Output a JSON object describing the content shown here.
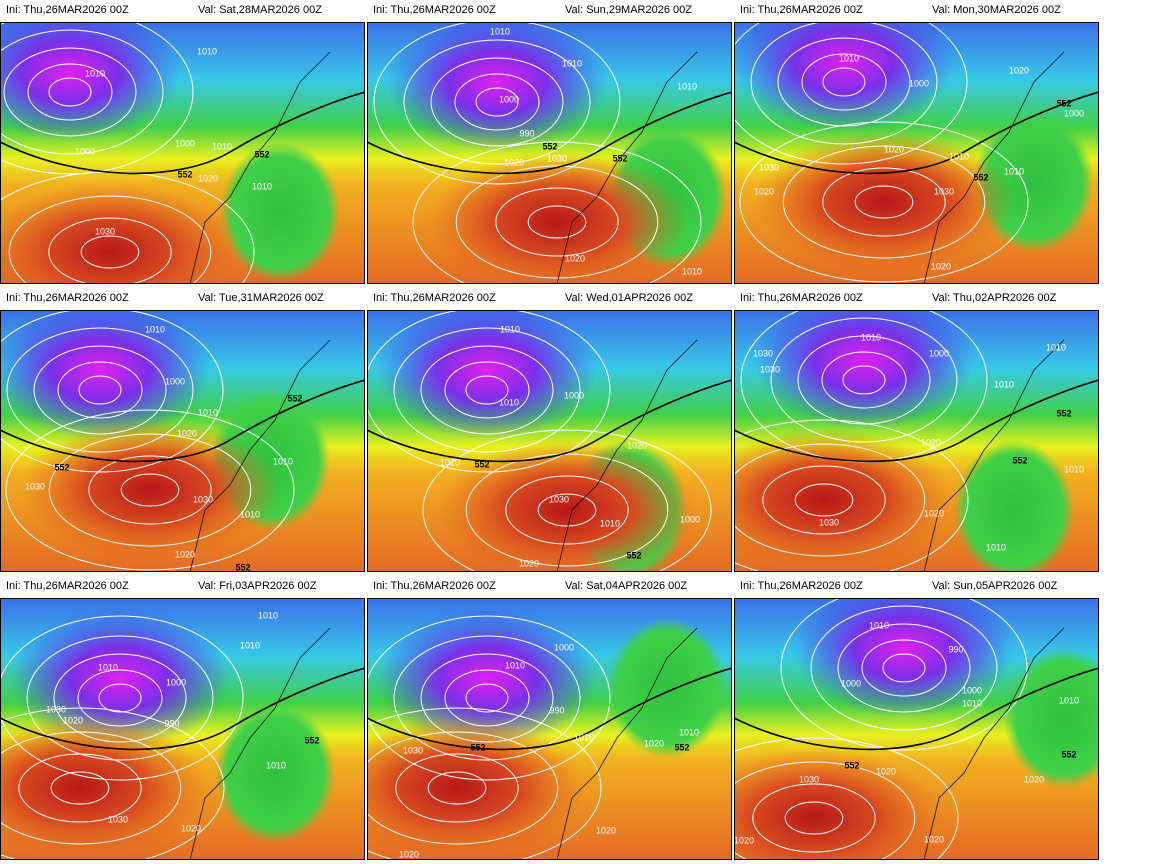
{
  "panels": [
    {
      "ini": "Ini: Thu,26MAR2026 00Z",
      "valid": "Val: Sat,28MAR2026 00Z",
      "labels": [
        "1010",
        "1010",
        "1000",
        "1000",
        "1010",
        "552",
        "552",
        "1020",
        "1010",
        "1030"
      ]
    },
    {
      "ini": "Ini: Thu,26MAR2026 00Z",
      "valid": "Val: Sun,29MAR2026 00Z",
      "labels": [
        "1010",
        "1010",
        "1000",
        "990",
        "1010",
        "552",
        "1030",
        "552",
        "1020",
        "1020",
        "1010"
      ]
    },
    {
      "ini": "Ini: Thu,26MAR2026 00Z",
      "valid": "Val: Mon,30MAR2026 00Z",
      "labels": [
        "1010",
        "1000",
        "1020",
        "552",
        "1000",
        "1020",
        "1010",
        "1030",
        "552",
        "1010",
        "1020",
        "1030",
        "1020"
      ]
    },
    {
      "ini": "Ini: Thu,26MAR2026 00Z",
      "valid": "Val: Tue,31MAR2026 00Z",
      "labels": [
        "1010",
        "1000",
        "1010",
        "552",
        "1020",
        "1010",
        "552",
        "1030",
        "1030",
        "1010",
        "1020",
        "552"
      ]
    },
    {
      "ini": "Ini: Thu,26MAR2026 00Z",
      "valid": "Val: Wed,01APR2026 00Z",
      "labels": [
        "1010",
        "1010",
        "1000",
        "1020",
        "1020",
        "552",
        "1030",
        "1010",
        "1000",
        "552",
        "1020"
      ]
    },
    {
      "ini": "Ini: Thu,26MAR2026 00Z",
      "valid": "Val: Thu,02APR2026 00Z",
      "labels": [
        "1010",
        "1000",
        "1030",
        "1030",
        "1010",
        "1010",
        "552",
        "1020",
        "552",
        "1010",
        "1030",
        "1020",
        "1010"
      ]
    },
    {
      "ini": "Ini: Thu,26MAR2026 00Z",
      "valid": "Val: Fri,03APR2026 00Z",
      "labels": [
        "1010",
        "1010",
        "1010",
        "1000",
        "1030",
        "1020",
        "990",
        "552",
        "1010",
        "1030",
        "1020"
      ]
    },
    {
      "ini": "Ini: Thu,26MAR2026 00Z",
      "valid": "Val: Sat,04APR2026 00Z",
      "labels": [
        "1000",
        "1010",
        "990",
        "1010",
        "552",
        "1030",
        "1020",
        "552",
        "1010",
        "1020",
        "1020"
      ]
    },
    {
      "ini": "Ini: Thu,26MAR2026 00Z",
      "valid": "Val: Sun,05APR2026 00Z",
      "labels": [
        "1010",
        "990",
        "1000",
        "1000",
        "1010",
        "1010",
        "552",
        "1020",
        "1030",
        "552",
        "1020",
        "1020",
        "1020"
      ]
    }
  ]
}
